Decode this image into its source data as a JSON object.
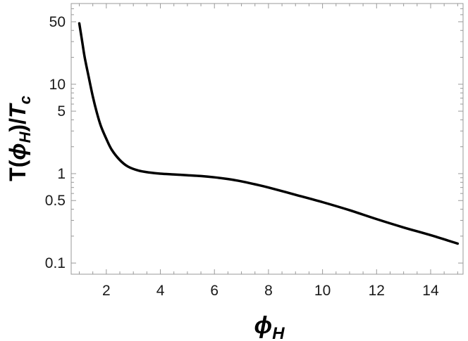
{
  "chart_data": {
    "type": "line",
    "title": "",
    "xlabel": {
      "main": "ϕ",
      "sub": "H"
    },
    "ylabel": {
      "lead": "T(",
      "phi": "ϕ",
      "phi_sub": "H",
      "mid": ")/",
      "t": "T",
      "t_sub": "c"
    },
    "y_scale": "log",
    "xlim": [
      0.7,
      15.2
    ],
    "ylim": [
      0.075,
      80
    ],
    "x_ticks": [
      2,
      4,
      6,
      8,
      10,
      12,
      14
    ],
    "x_tick_labels": [
      "2",
      "4",
      "6",
      "8",
      "10",
      "12",
      "14"
    ],
    "y_ticks": [
      0.1,
      0.5,
      1,
      5,
      10,
      50
    ],
    "y_tick_labels": [
      "0.1",
      "0.5",
      "1",
      "5",
      "10",
      "50"
    ],
    "grid": false,
    "series": [
      {
        "color": "#000000",
        "x": [
          1.0,
          1.1,
          1.2,
          1.35,
          1.5,
          1.65,
          1.8,
          2.0,
          2.2,
          2.5,
          2.8,
          3.2,
          3.6,
          4.0,
          4.5,
          5.0,
          5.5,
          6.0,
          6.5,
          7.0,
          7.5,
          8.0,
          9.0,
          10.0,
          11.0,
          12.0,
          13.0,
          14.0,
          15.0
        ],
        "y": [
          48,
          31,
          20,
          12,
          7.3,
          4.8,
          3.4,
          2.45,
          1.85,
          1.42,
          1.2,
          1.08,
          1.03,
          1.0,
          0.98,
          0.96,
          0.94,
          0.91,
          0.87,
          0.82,
          0.76,
          0.7,
          0.58,
          0.48,
          0.39,
          0.31,
          0.25,
          0.205,
          0.165
        ]
      }
    ]
  }
}
